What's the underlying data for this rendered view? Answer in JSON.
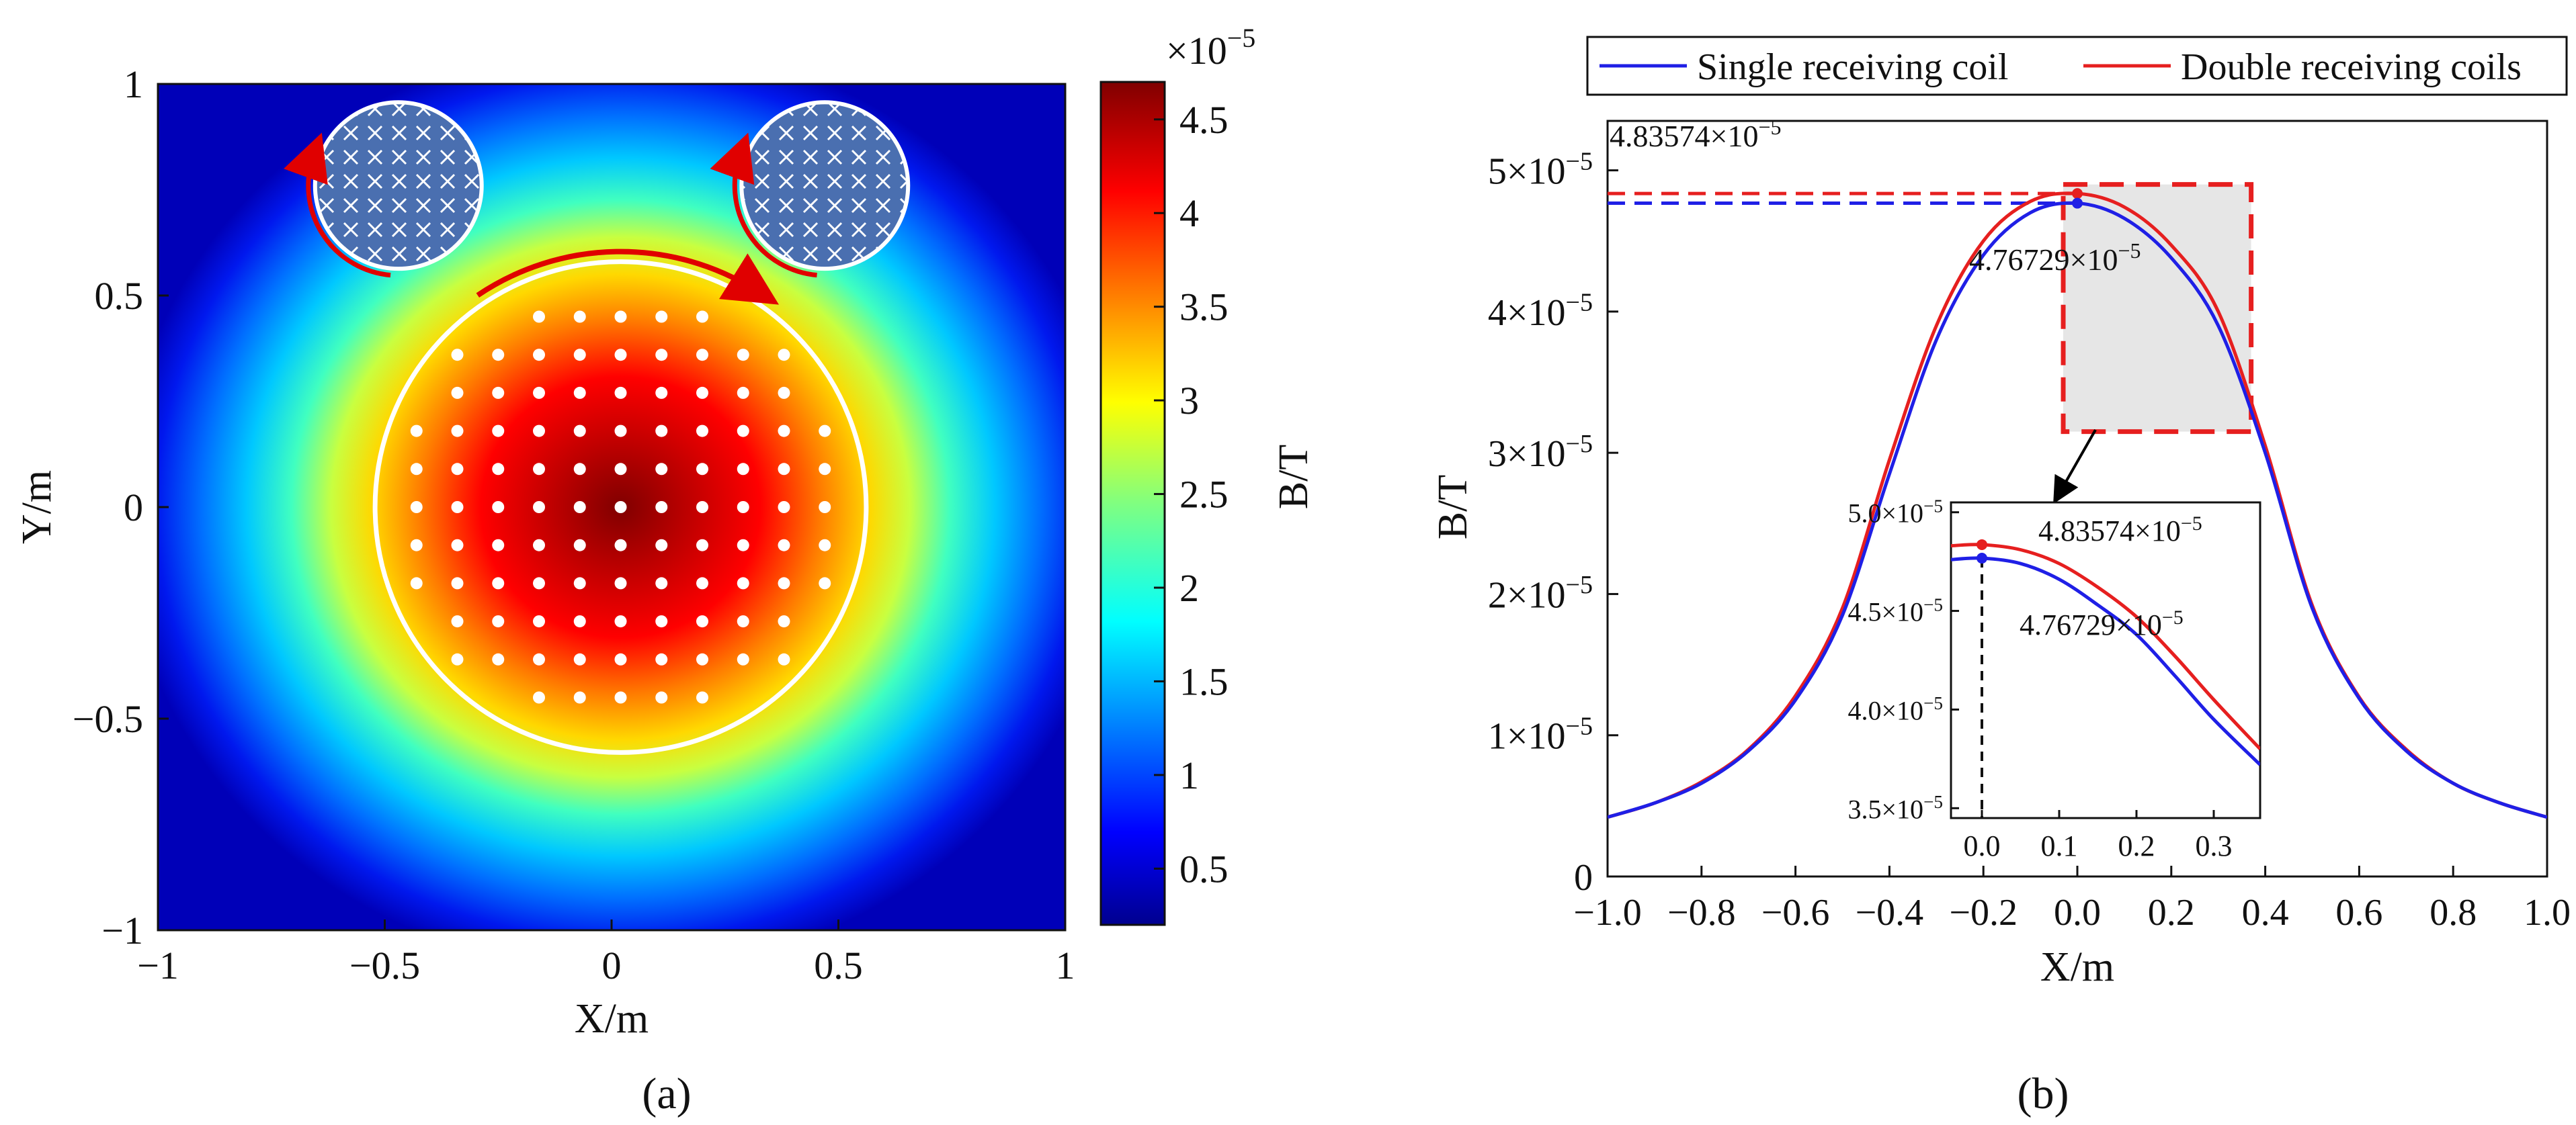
{
  "chart_data": [
    {
      "panel": "a",
      "caption": "(a)",
      "type": "heatmap",
      "xlabel": "X/m",
      "ylabel": "Y/m",
      "xlim": [
        -1,
        1
      ],
      "ylim": [
        -1,
        1
      ],
      "x_tick_labels": [
        "−1",
        "−0.5",
        "0",
        "0.5",
        "1"
      ],
      "x_tick_values": [
        -1,
        -0.5,
        0,
        0.5,
        1
      ],
      "y_tick_labels": [
        "−1",
        "−0.5",
        "0",
        "0.5",
        "1"
      ],
      "y_tick_values": [
        -1,
        -0.5,
        0,
        0.5,
        1
      ],
      "colorbar": {
        "label": "B/T",
        "multiplier": "×10",
        "exponent": "−5",
        "range": [
          0.2,
          4.7
        ],
        "tick_labels": [
          "0.5",
          "1",
          "1.5",
          "2",
          "2.5",
          "3",
          "3.5",
          "4",
          "4.5"
        ],
        "tick_values": [
          0.5,
          1,
          1.5,
          2,
          2.5,
          3,
          3.5,
          4,
          4.5
        ],
        "colormap": "jet"
      },
      "peak_value": 4.7,
      "main_coil": {
        "center": [
          0.02,
          0.0
        ],
        "radius": 0.56
      },
      "receiving_coils": [
        {
          "center": [
            -0.47,
            0.76
          ],
          "radius": 0.19
        },
        {
          "center": [
            0.47,
            0.76
          ],
          "radius": 0.19
        }
      ],
      "measurement_points_spacing": 0.09
    },
    {
      "panel": "b",
      "caption": "(b)",
      "type": "line",
      "xlabel": "X/m",
      "ylabel": "B/T",
      "xlim": [
        -1.0,
        1.0
      ],
      "ylim": [
        0,
        5.35
      ],
      "y_unit_exponent": -5,
      "x_tick_labels": [
        "−1.0",
        "−0.8",
        "−0.6",
        "−0.4",
        "−0.2",
        "0.0",
        "0.2",
        "0.4",
        "0.6",
        "0.8",
        "1.0"
      ],
      "x_tick_values": [
        -1.0,
        -0.8,
        -0.6,
        -0.4,
        -0.2,
        0.0,
        0.2,
        0.4,
        0.6,
        0.8,
        1.0
      ],
      "y_ticks": [
        {
          "value": 0,
          "label": "0",
          "exp": ""
        },
        {
          "value": 1,
          "label": "1×10",
          "exp": "−5"
        },
        {
          "value": 2,
          "label": "2×10",
          "exp": "−5"
        },
        {
          "value": 3,
          "label": "3×10",
          "exp": "−5"
        },
        {
          "value": 4,
          "label": "4×10",
          "exp": "−5"
        },
        {
          "value": 5,
          "label": "5×10",
          "exp": "−5"
        }
      ],
      "legend": {
        "placement": "top",
        "entries": [
          "Single receiving coil",
          "Double receiving coils"
        ]
      },
      "series": [
        {
          "name": "Single receiving coil",
          "color": "#1f1fe6",
          "x": [
            -1.0,
            -0.9,
            -0.8,
            -0.7,
            -0.6,
            -0.5,
            -0.4,
            -0.3,
            -0.2,
            -0.1,
            0.0,
            0.1,
            0.2,
            0.3,
            0.4,
            0.5,
            0.6,
            0.7,
            0.8,
            0.9,
            1.0
          ],
          "y": [
            0.42,
            0.52,
            0.66,
            0.89,
            1.25,
            1.85,
            2.85,
            3.8,
            4.4,
            4.7,
            4.76729,
            4.66,
            4.38,
            3.9,
            3.0,
            1.9,
            1.26,
            0.89,
            0.66,
            0.52,
            0.42
          ]
        },
        {
          "name": "Double receiving coils",
          "color": "#e61f1f",
          "x": [
            -1.0,
            -0.9,
            -0.8,
            -0.7,
            -0.6,
            -0.5,
            -0.4,
            -0.3,
            -0.2,
            -0.1,
            0.0,
            0.1,
            0.2,
            0.3,
            0.4,
            0.5,
            0.6,
            0.7,
            0.8,
            0.9,
            1.0
          ],
          "y": [
            0.42,
            0.52,
            0.67,
            0.9,
            1.28,
            1.9,
            2.95,
            3.9,
            4.5,
            4.78,
            4.83574,
            4.74,
            4.47,
            4.0,
            3.05,
            1.92,
            1.27,
            0.9,
            0.66,
            0.52,
            0.42
          ]
        }
      ],
      "peak_annotations": [
        {
          "series": "Double receiving coils",
          "x": 0.0,
          "value_label": "4.83574×10",
          "exp": "−5",
          "y": 4.83574
        },
        {
          "series": "Single receiving coil",
          "x": 0.0,
          "value_label": "4.76729×10",
          "exp": "−5",
          "y": 4.76729
        }
      ],
      "zoom_region": {
        "xlim": [
          -0.03,
          0.37
        ],
        "ylim": [
          3.15,
          4.9
        ]
      },
      "inset": {
        "xlim": [
          -0.04,
          0.36
        ],
        "ylim": [
          3.45,
          5.05
        ],
        "x_tick_labels": [
          "0.0",
          "0.1",
          "0.2",
          "0.3"
        ],
        "x_tick_values": [
          0.0,
          0.1,
          0.2,
          0.3
        ],
        "y_ticks": [
          {
            "value": 3.5,
            "label": "3.5×10",
            "exp": "−5"
          },
          {
            "value": 4.0,
            "label": "4.0×10",
            "exp": "−5"
          },
          {
            "value": 4.5,
            "label": "4.5×10",
            "exp": "−5"
          },
          {
            "value": 5.0,
            "label": "5.0×10",
            "exp": "−5"
          }
        ],
        "series": [
          {
            "name": "Single receiving coil",
            "color": "#1f1fe6",
            "x": [
              -0.04,
              0.0,
              0.05,
              0.1,
              0.15,
              0.2,
              0.25,
              0.3,
              0.36
            ],
            "y": [
              4.76,
              4.76729,
              4.74,
              4.66,
              4.53,
              4.38,
              4.17,
              3.95,
              3.72
            ]
          },
          {
            "name": "Double receiving coils",
            "color": "#e61f1f",
            "x": [
              -0.04,
              0.0,
              0.05,
              0.1,
              0.15,
              0.2,
              0.25,
              0.3,
              0.36
            ],
            "y": [
              4.83,
              4.83574,
              4.81,
              4.74,
              4.62,
              4.47,
              4.27,
              4.05,
              3.8
            ]
          }
        ],
        "annotations": [
          {
            "label": "4.83574×10",
            "exp": "−5"
          },
          {
            "label": "4.76729×10",
            "exp": "−5"
          }
        ]
      }
    }
  ]
}
